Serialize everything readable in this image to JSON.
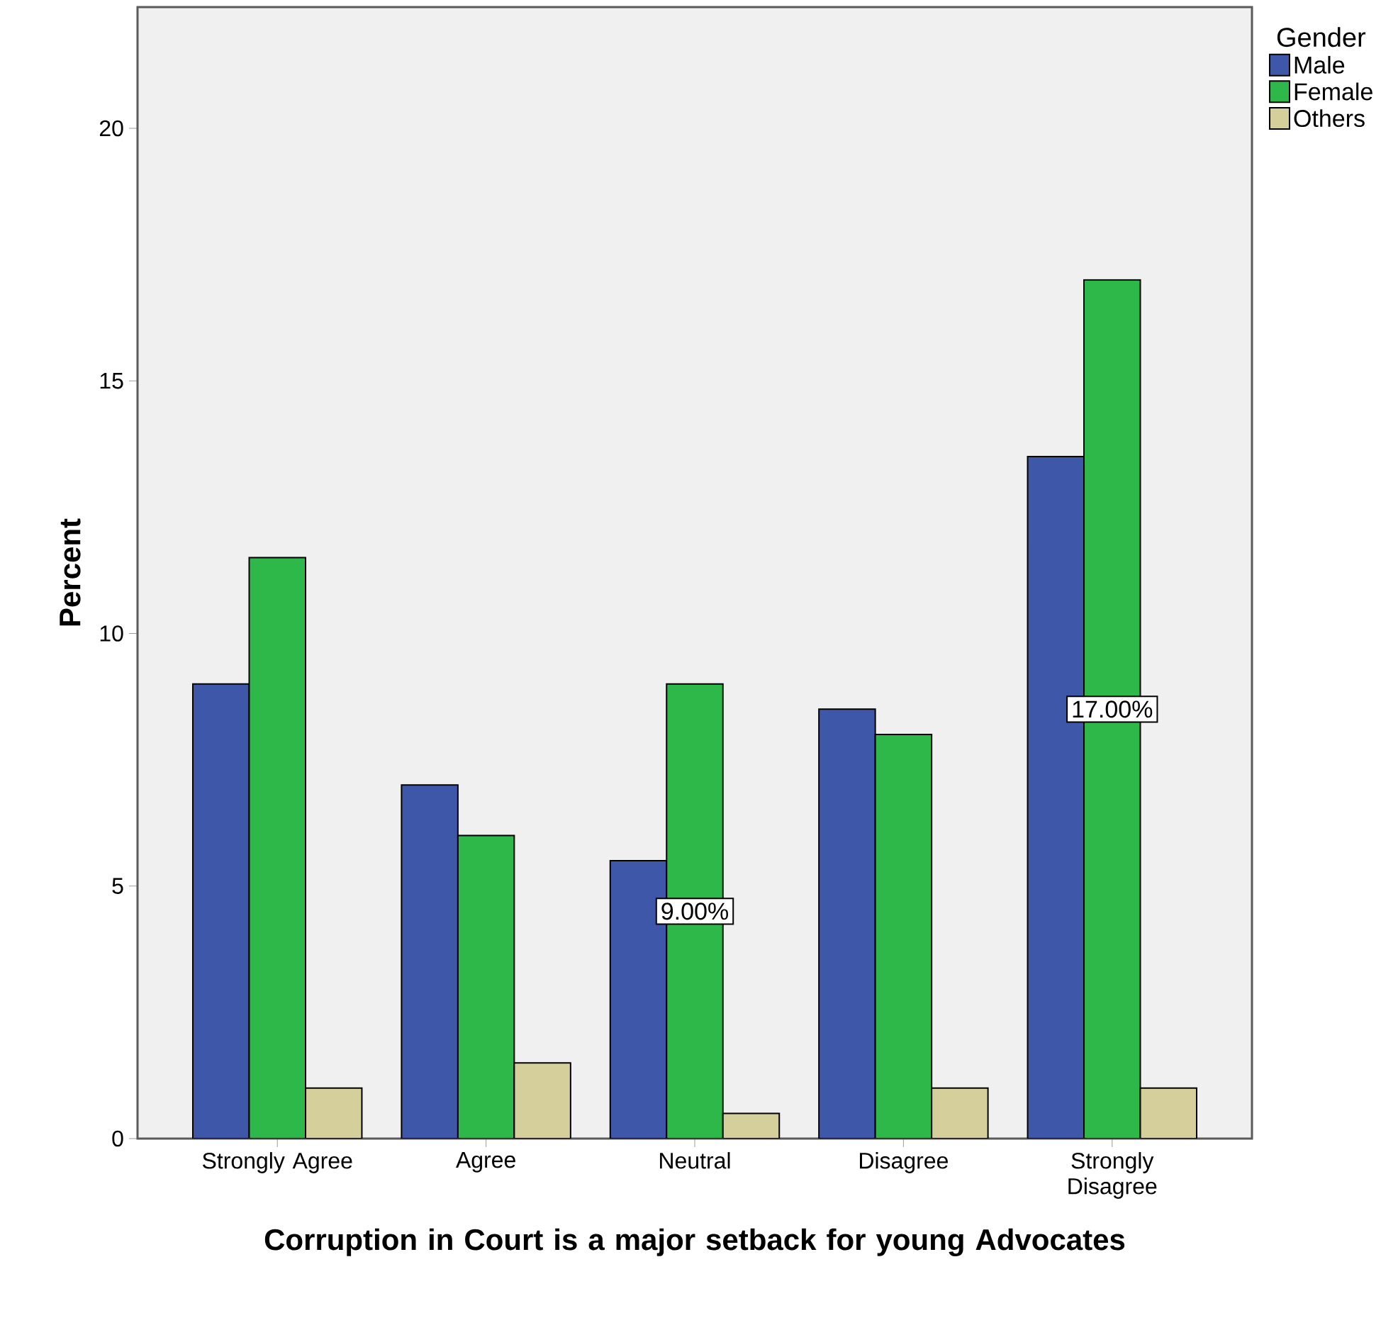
{
  "chart_data": {
    "type": "bar",
    "xlabel": "Corruption in Court is a major setback for young Advocates",
    "ylabel": "Percent",
    "legend_title": "Gender",
    "legend": "top right",
    "categories": [
      "Strongly Agree",
      "Agree",
      "Neutral",
      "Disagree",
      "Strongly Disagree"
    ],
    "series": [
      {
        "name": "Male",
        "color": "#3f57a9",
        "values": [
          9,
          7,
          5.5,
          8.5,
          13.5
        ]
      },
      {
        "name": "Female",
        "color": "#2fb84a",
        "values": [
          11.5,
          6,
          9,
          8,
          17
        ],
        "value_labels": [
          null,
          null,
          "9.00%",
          null,
          "17.00%"
        ]
      },
      {
        "name": "Others",
        "color": "#d5d09b",
        "values": [
          1,
          1.5,
          0.5,
          1,
          1
        ]
      }
    ],
    "ylim": [
      0,
      22.4
    ],
    "yticks": [
      0,
      5,
      10,
      15,
      20
    ]
  }
}
